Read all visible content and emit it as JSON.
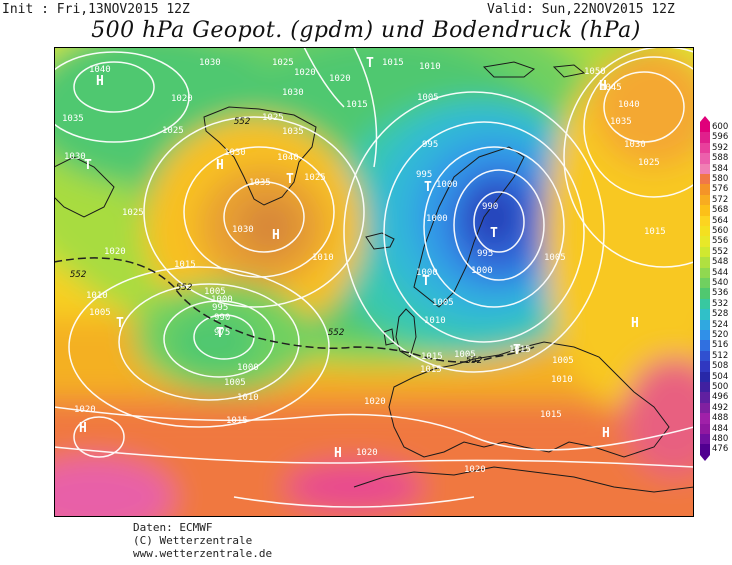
{
  "header": {
    "init": "Init : Fri,13NOV2015 12Z",
    "valid": "Valid: Sun,22NOV2015 12Z",
    "title": "500 hPa Geopot. (gpdm) und Bodendruck (hPa)"
  },
  "footer": {
    "line1": "Daten: ECMWF",
    "line2": "(C) Wetterzentrale",
    "line3": "www.wetterzentrale.de"
  },
  "legend": {
    "levels": [
      "600",
      "596",
      "592",
      "588",
      "584",
      "580",
      "576",
      "572",
      "568",
      "564",
      "560",
      "556",
      "552",
      "548",
      "544",
      "540",
      "536",
      "532",
      "528",
      "524",
      "520",
      "516",
      "512",
      "508",
      "504",
      "500",
      "496",
      "492",
      "488",
      "484",
      "480",
      "476"
    ],
    "colors": [
      "#e0007a",
      "#e0208c",
      "#e8409c",
      "#ec60ac",
      "#f080b4",
      "#f07848",
      "#f49428",
      "#f8ac20",
      "#fcc018",
      "#fcd420",
      "#f4e020",
      "#e8e828",
      "#d0e830",
      "#b0e040",
      "#90d850",
      "#70d060",
      "#50c870",
      "#38c8a0",
      "#30c0c8",
      "#30a8e0",
      "#3090e8",
      "#3070e0",
      "#3050d0",
      "#3038c0",
      "#2828a8",
      "#4020a0",
      "#6020a0",
      "#8020a0",
      "#a020a8",
      "#9018a0",
      "#7010a0",
      "#500090"
    ]
  },
  "map": {
    "pressure_labels": [
      "1040",
      "1030",
      "1025",
      "1020",
      "1020",
      "1015",
      "1010",
      "1035",
      "1030",
      "1025",
      "1020",
      "1015",
      "1030",
      "1040",
      "1035",
      "1025",
      "1030",
      "1025",
      "1035",
      "1030",
      "1025",
      "1020",
      "1015",
      "1010",
      "1005",
      "1005",
      "1000",
      "995",
      "990",
      "975",
      "1000",
      "1005",
      "1010",
      "1015",
      "1020",
      "1005",
      "995",
      "995",
      "1000",
      "1000",
      "990",
      "995",
      "1000",
      "1000",
      "1005",
      "1010",
      "1015",
      "1005",
      "1015",
      "1020",
      "1015",
      "1010",
      "1005",
      "1015",
      "1010",
      "1005",
      "1050",
      "1045",
      "1040",
      "1035",
      "1030",
      "1025",
      "1015",
      "1020",
      "1020"
    ],
    "height_labels": [
      "552",
      "552",
      "552",
      "552",
      "552"
    ],
    "system_markers": [
      "H",
      "H",
      "H",
      "H",
      "H",
      "H",
      "H",
      "H",
      "T",
      "T",
      "T",
      "T",
      "T",
      "T",
      "T",
      "T",
      "T"
    ]
  }
}
